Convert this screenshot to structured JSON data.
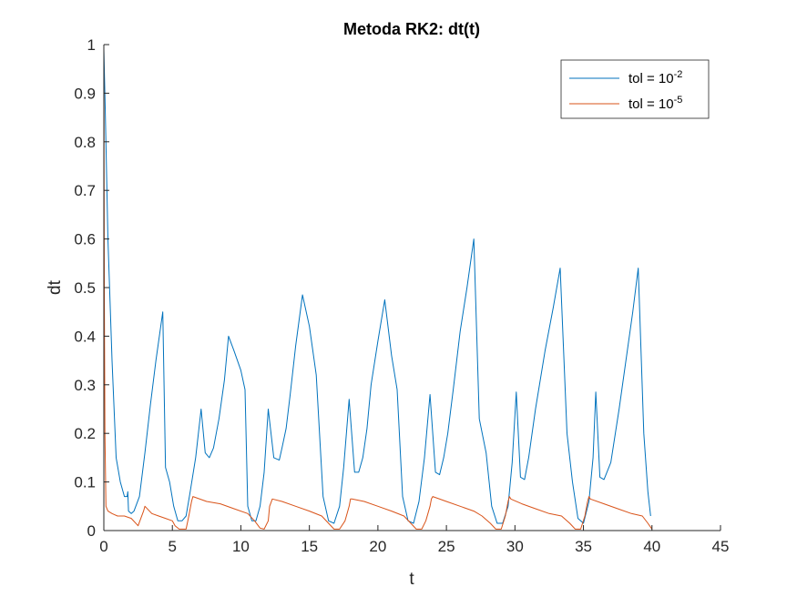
{
  "chart_data": {
    "type": "line",
    "title": "Metoda RK2: dt(t)",
    "xlabel": "t",
    "ylabel": "dt",
    "xlim": [
      0,
      45
    ],
    "ylim": [
      0,
      1
    ],
    "xticks": [
      "0",
      "5",
      "10",
      "15",
      "20",
      "25",
      "30",
      "35",
      "40",
      "45"
    ],
    "yticks": [
      "0",
      "0.1",
      "0.2",
      "0.3",
      "0.4",
      "0.5",
      "0.6",
      "0.7",
      "0.8",
      "0.9",
      "1"
    ],
    "grid": false,
    "legend_position": "top-right",
    "series": [
      {
        "name_base": "tol = 10",
        "name_exp": "-2",
        "color": "#0072BD",
        "x": [
          0,
          0.1,
          0.3,
          0.6,
          0.9,
          1.2,
          1.5,
          1.7,
          1.75,
          1.8,
          2.0,
          2.2,
          2.6,
          3.0,
          3.4,
          3.8,
          4.3,
          4.5,
          4.8,
          5.1,
          5.4,
          5.7,
          6.0,
          6.3,
          6.7,
          7.1,
          7.4,
          7.7,
          8.0,
          8.4,
          8.8,
          9.1,
          9.5,
          10.0,
          10.3,
          10.5,
          10.8,
          11.1,
          11.4,
          11.7,
          12.0,
          12.4,
          12.8,
          13.0,
          13.3,
          13.6,
          14.0,
          14.5,
          15.0,
          15.5,
          16.0,
          16.4,
          16.8,
          17.2,
          17.5,
          17.9,
          18.3,
          18.6,
          18.9,
          19.2,
          19.5,
          20.0,
          20.5,
          21.0,
          21.4,
          21.8,
          22.2,
          22.6,
          23.0,
          23.4,
          23.8,
          24.2,
          24.5,
          24.8,
          25.1,
          25.5,
          26.0,
          26.5,
          27.0,
          27.4,
          27.9,
          28.3,
          28.7,
          29.1,
          29.5,
          29.8,
          30.1,
          30.4,
          30.7,
          31.0,
          31.5,
          32.2,
          32.8,
          33.3,
          33.8,
          34.2,
          34.6,
          35.0,
          35.4,
          35.7,
          35.9,
          36.2,
          36.5,
          37.0,
          37.6,
          38.2,
          38.6,
          39.0,
          39.4,
          39.7,
          39.9
        ],
        "y": [
          0.99,
          0.87,
          0.6,
          0.35,
          0.15,
          0.1,
          0.07,
          0.07,
          0.08,
          0.04,
          0.035,
          0.04,
          0.07,
          0.16,
          0.26,
          0.35,
          0.45,
          0.13,
          0.1,
          0.05,
          0.02,
          0.02,
          0.03,
          0.08,
          0.15,
          0.25,
          0.16,
          0.15,
          0.17,
          0.23,
          0.31,
          0.4,
          0.37,
          0.33,
          0.29,
          0.05,
          0.02,
          0.02,
          0.05,
          0.12,
          0.25,
          0.15,
          0.145,
          0.17,
          0.21,
          0.28,
          0.38,
          0.485,
          0.42,
          0.32,
          0.07,
          0.02,
          0.015,
          0.05,
          0.13,
          0.27,
          0.12,
          0.12,
          0.15,
          0.21,
          0.3,
          0.39,
          0.475,
          0.36,
          0.29,
          0.07,
          0.02,
          0.015,
          0.06,
          0.15,
          0.28,
          0.12,
          0.115,
          0.15,
          0.2,
          0.29,
          0.41,
          0.5,
          0.6,
          0.23,
          0.16,
          0.05,
          0.015,
          0.015,
          0.05,
          0.14,
          0.285,
          0.11,
          0.105,
          0.15,
          0.25,
          0.37,
          0.46,
          0.54,
          0.2,
          0.1,
          0.025,
          0.015,
          0.06,
          0.15,
          0.285,
          0.11,
          0.105,
          0.14,
          0.25,
          0.37,
          0.45,
          0.54,
          0.2,
          0.08,
          0.03
        ]
      },
      {
        "name_base": "tol = 10",
        "name_exp": "-5",
        "color": "#D95319",
        "x": [
          0,
          0.03,
          0.08,
          0.15,
          0.3,
          0.6,
          1.0,
          1.5,
          2.0,
          2.5,
          2.9,
          3.0,
          3.5,
          4.0,
          4.5,
          5.0,
          5.2,
          5.5,
          6.0,
          6.2,
          6.4,
          6.5,
          7.5,
          8.5,
          9.5,
          10.5,
          11.0,
          11.4,
          11.7,
          12.0,
          12.1,
          12.3,
          13.0,
          14.0,
          15.0,
          15.9,
          16.4,
          16.8,
          17.2,
          17.6,
          17.9,
          18.0,
          18.1,
          19.0,
          20.0,
          21.0,
          21.9,
          22.4,
          22.8,
          23.2,
          23.5,
          23.8,
          23.9,
          24.0,
          25.0,
          26.0,
          27.0,
          27.6,
          28.2,
          28.6,
          29.0,
          29.3,
          29.5,
          29.6,
          29.7,
          30.5,
          31.5,
          32.5,
          33.4,
          34.0,
          34.4,
          34.8,
          35.1,
          35.3,
          35.4,
          35.5,
          36.5,
          37.5,
          38.5,
          39.3,
          39.7,
          40.0
        ],
        "y": [
          0.99,
          0.5,
          0.2,
          0.05,
          0.04,
          0.035,
          0.03,
          0.03,
          0.025,
          0.01,
          0.04,
          0.05,
          0.035,
          0.03,
          0.025,
          0.02,
          0.01,
          0.003,
          0.003,
          0.03,
          0.06,
          0.07,
          0.06,
          0.055,
          0.045,
          0.035,
          0.02,
          0.005,
          0.003,
          0.02,
          0.05,
          0.065,
          0.06,
          0.05,
          0.04,
          0.03,
          0.015,
          0.003,
          0.003,
          0.02,
          0.05,
          0.065,
          0.065,
          0.06,
          0.05,
          0.04,
          0.03,
          0.015,
          0.003,
          0.003,
          0.02,
          0.05,
          0.065,
          0.07,
          0.06,
          0.05,
          0.04,
          0.03,
          0.015,
          0.003,
          0.003,
          0.03,
          0.06,
          0.07,
          0.065,
          0.055,
          0.045,
          0.035,
          0.03,
          0.015,
          0.003,
          0.003,
          0.03,
          0.06,
          0.07,
          0.065,
          0.055,
          0.045,
          0.035,
          0.03,
          0.015,
          0.003
        ]
      }
    ]
  }
}
